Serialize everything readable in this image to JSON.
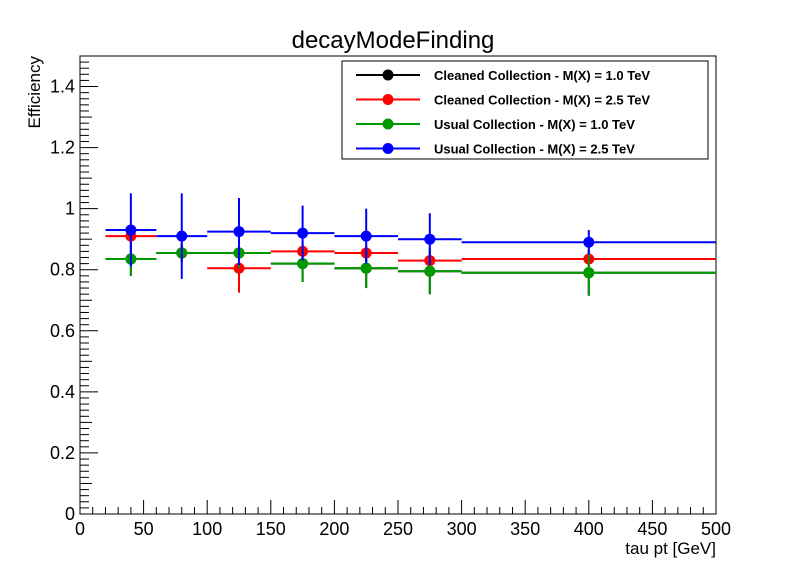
{
  "chart_data": {
    "type": "scatter",
    "title": "decayModeFinding",
    "xlabel": "tau pt [GeV]",
    "ylabel": "Efficiency",
    "xlim": [
      0,
      500
    ],
    "ylim": [
      0,
      1.5
    ],
    "x_ticks": [
      "0",
      "50",
      "100",
      "150",
      "200",
      "250",
      "300",
      "350",
      "400",
      "450",
      "500"
    ],
    "y_ticks": [
      "0",
      "0.2",
      "0.4",
      "0.6",
      "0.8",
      "1",
      "1.2",
      "1.4"
    ],
    "grid": false,
    "legend_position": "top-right",
    "bins": [
      [
        20,
        60
      ],
      [
        60,
        100
      ],
      [
        100,
        150
      ],
      [
        150,
        200
      ],
      [
        200,
        250
      ],
      [
        250,
        300
      ],
      [
        300,
        500
      ]
    ],
    "x": [
      40,
      80,
      125,
      175,
      225,
      275,
      400
    ],
    "series": [
      {
        "name": "Cleaned Collection - M(X) = 1.0 TeV",
        "color": "#000000",
        "values": [
          0.835,
          0.855,
          0.855,
          0.82,
          0.805,
          0.795,
          0.79
        ],
        "errors": [
          0.055,
          0.03,
          0.05,
          0.06,
          0.065,
          0.075,
          0.075
        ]
      },
      {
        "name": "Cleaned Collection - M(X) = 2.5 TeV",
        "color": "#ff0000",
        "values": [
          0.91,
          0.855,
          0.805,
          0.86,
          0.855,
          0.83,
          0.835
        ],
        "errors": [
          0.025,
          0.03,
          0.08,
          0.03,
          0.025,
          0.03,
          0.03
        ]
      },
      {
        "name": "Usual Collection - M(X) = 1.0 TeV",
        "color": "#009900",
        "values": [
          0.835,
          0.855,
          0.855,
          0.82,
          0.805,
          0.795,
          0.79
        ],
        "errors": [
          0.055,
          0.03,
          0.05,
          0.06,
          0.065,
          0.075,
          0.075
        ]
      },
      {
        "name": "Usual Collection - M(X) = 2.5 TeV",
        "color": "#0000ff",
        "values": [
          0.93,
          0.91,
          0.925,
          0.92,
          0.91,
          0.9,
          0.89
        ],
        "errors": [
          0.12,
          0.14,
          0.11,
          0.09,
          0.09,
          0.085,
          0.04
        ]
      }
    ]
  }
}
